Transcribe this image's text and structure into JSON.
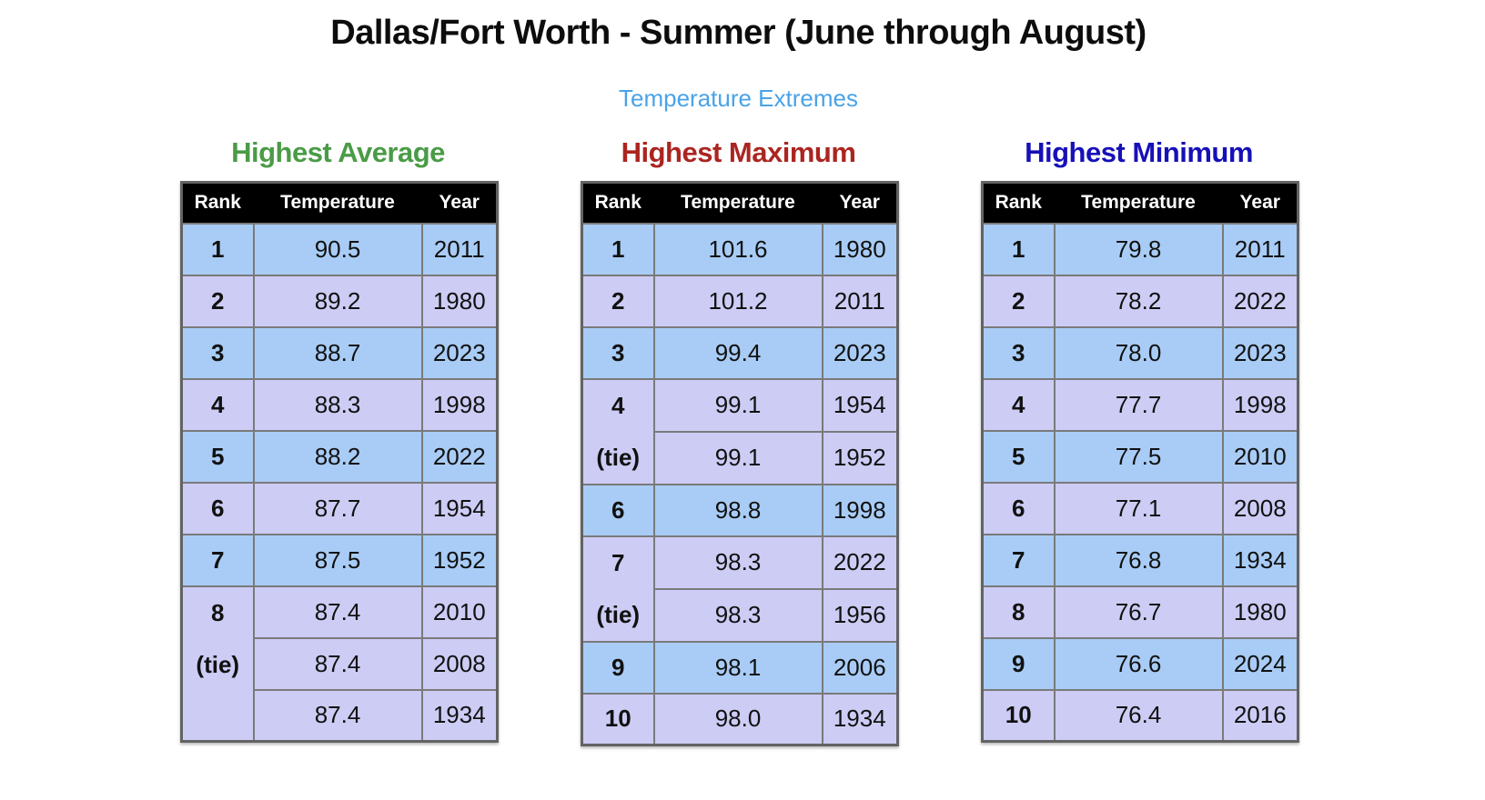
{
  "title": "Dallas/Fort Worth - Summer (June through August)",
  "subtitle": "Temperature Extremes",
  "tie_label": "(tie)",
  "columns": [
    "Rank",
    "Temperature",
    "Year"
  ],
  "colors": {
    "title_text": "#0d0d0d",
    "subtitle_text": "#49a3e8",
    "band_blue": "#a8ccf5",
    "band_lavender": "#cdccf5",
    "border": "#7a7a7a",
    "outer_border": "#636363",
    "header_bg": "#000000",
    "header_text": "#ffffff",
    "cell_text": "#111111",
    "heading_green": "#4a9b47",
    "heading_red": "#ab2520",
    "heading_blue": "#1610b8"
  },
  "tables": [
    {
      "id": "highest-average",
      "heading": "Highest Average",
      "heading_color": "#4a9b47",
      "groups": [
        {
          "rank": "1",
          "entries": [
            {
              "temperature": "90.5",
              "year": "2011"
            }
          ]
        },
        {
          "rank": "2",
          "entries": [
            {
              "temperature": "89.2",
              "year": "1980"
            }
          ]
        },
        {
          "rank": "3",
          "entries": [
            {
              "temperature": "88.7",
              "year": "2023"
            }
          ]
        },
        {
          "rank": "4",
          "entries": [
            {
              "temperature": "88.3",
              "year": "1998"
            }
          ]
        },
        {
          "rank": "5",
          "entries": [
            {
              "temperature": "88.2",
              "year": "2022"
            }
          ]
        },
        {
          "rank": "6",
          "entries": [
            {
              "temperature": "87.7",
              "year": "1954"
            }
          ]
        },
        {
          "rank": "7",
          "entries": [
            {
              "temperature": "87.5",
              "year": "1952"
            }
          ]
        },
        {
          "rank": "8",
          "entries": [
            {
              "temperature": "87.4",
              "year": "2010"
            },
            {
              "temperature": "87.4",
              "year": "2008"
            },
            {
              "temperature": "87.4",
              "year": "1934"
            }
          ]
        }
      ]
    },
    {
      "id": "highest-maximum",
      "heading": "Highest Maximum",
      "heading_color": "#ab2520",
      "groups": [
        {
          "rank": "1",
          "entries": [
            {
              "temperature": "101.6",
              "year": "1980"
            }
          ]
        },
        {
          "rank": "2",
          "entries": [
            {
              "temperature": "101.2",
              "year": "2011"
            }
          ]
        },
        {
          "rank": "3",
          "entries": [
            {
              "temperature": "99.4",
              "year": "2023"
            }
          ]
        },
        {
          "rank": "4",
          "entries": [
            {
              "temperature": "99.1",
              "year": "1954"
            },
            {
              "temperature": "99.1",
              "year": "1952"
            }
          ]
        },
        {
          "rank": "6",
          "entries": [
            {
              "temperature": "98.8",
              "year": "1998"
            }
          ]
        },
        {
          "rank": "7",
          "entries": [
            {
              "temperature": "98.3",
              "year": "2022"
            },
            {
              "temperature": "98.3",
              "year": "1956"
            }
          ]
        },
        {
          "rank": "9",
          "entries": [
            {
              "temperature": "98.1",
              "year": "2006"
            }
          ]
        },
        {
          "rank": "10",
          "entries": [
            {
              "temperature": "98.0",
              "year": "1934"
            }
          ]
        }
      ]
    },
    {
      "id": "highest-minimum",
      "heading": "Highest Minimum",
      "heading_color": "#1610b8",
      "groups": [
        {
          "rank": "1",
          "entries": [
            {
              "temperature": "79.8",
              "year": "2011"
            }
          ]
        },
        {
          "rank": "2",
          "entries": [
            {
              "temperature": "78.2",
              "year": "2022"
            }
          ]
        },
        {
          "rank": "3",
          "entries": [
            {
              "temperature": "78.0",
              "year": "2023"
            }
          ]
        },
        {
          "rank": "4",
          "entries": [
            {
              "temperature": "77.7",
              "year": "1998"
            }
          ]
        },
        {
          "rank": "5",
          "entries": [
            {
              "temperature": "77.5",
              "year": "2010"
            }
          ]
        },
        {
          "rank": "6",
          "entries": [
            {
              "temperature": "77.1",
              "year": "2008"
            }
          ]
        },
        {
          "rank": "7",
          "entries": [
            {
              "temperature": "76.8",
              "year": "1934"
            }
          ]
        },
        {
          "rank": "8",
          "entries": [
            {
              "temperature": "76.7",
              "year": "1980"
            }
          ]
        },
        {
          "rank": "9",
          "entries": [
            {
              "temperature": "76.6",
              "year": "2024"
            }
          ]
        },
        {
          "rank": "10",
          "entries": [
            {
              "temperature": "76.4",
              "year": "2016"
            }
          ]
        }
      ]
    }
  ],
  "chart_data": [
    {
      "type": "table",
      "title": "Highest Average",
      "columns": [
        "Rank",
        "Temperature",
        "Year"
      ],
      "rows": [
        [
          "1",
          "90.5",
          "2011"
        ],
        [
          "2",
          "89.2",
          "1980"
        ],
        [
          "3",
          "88.7",
          "2023"
        ],
        [
          "4",
          "88.3",
          "1998"
        ],
        [
          "5",
          "88.2",
          "2022"
        ],
        [
          "6",
          "87.7",
          "1954"
        ],
        [
          "7",
          "87.5",
          "1952"
        ],
        [
          "8 (tie)",
          "87.4",
          "2010"
        ],
        [
          "8 (tie)",
          "87.4",
          "2008"
        ],
        [
          "8 (tie)",
          "87.4",
          "1934"
        ]
      ]
    },
    {
      "type": "table",
      "title": "Highest Maximum",
      "columns": [
        "Rank",
        "Temperature",
        "Year"
      ],
      "rows": [
        [
          "1",
          "101.6",
          "1980"
        ],
        [
          "2",
          "101.2",
          "2011"
        ],
        [
          "3",
          "99.4",
          "2023"
        ],
        [
          "4 (tie)",
          "99.1",
          "1954"
        ],
        [
          "4 (tie)",
          "99.1",
          "1952"
        ],
        [
          "6",
          "98.8",
          "1998"
        ],
        [
          "7 (tie)",
          "98.3",
          "2022"
        ],
        [
          "7 (tie)",
          "98.3",
          "1956"
        ],
        [
          "9",
          "98.1",
          "2006"
        ],
        [
          "10",
          "98.0",
          "1934"
        ]
      ]
    },
    {
      "type": "table",
      "title": "Highest Minimum",
      "columns": [
        "Rank",
        "Temperature",
        "Year"
      ],
      "rows": [
        [
          "1",
          "79.8",
          "2011"
        ],
        [
          "2",
          "78.2",
          "2022"
        ],
        [
          "3",
          "78.0",
          "2023"
        ],
        [
          "4",
          "77.7",
          "1998"
        ],
        [
          "5",
          "77.5",
          "2010"
        ],
        [
          "6",
          "77.1",
          "2008"
        ],
        [
          "7",
          "76.8",
          "1934"
        ],
        [
          "8",
          "76.7",
          "1980"
        ],
        [
          "9",
          "76.6",
          "2024"
        ],
        [
          "10",
          "76.4",
          "2016"
        ]
      ]
    }
  ]
}
